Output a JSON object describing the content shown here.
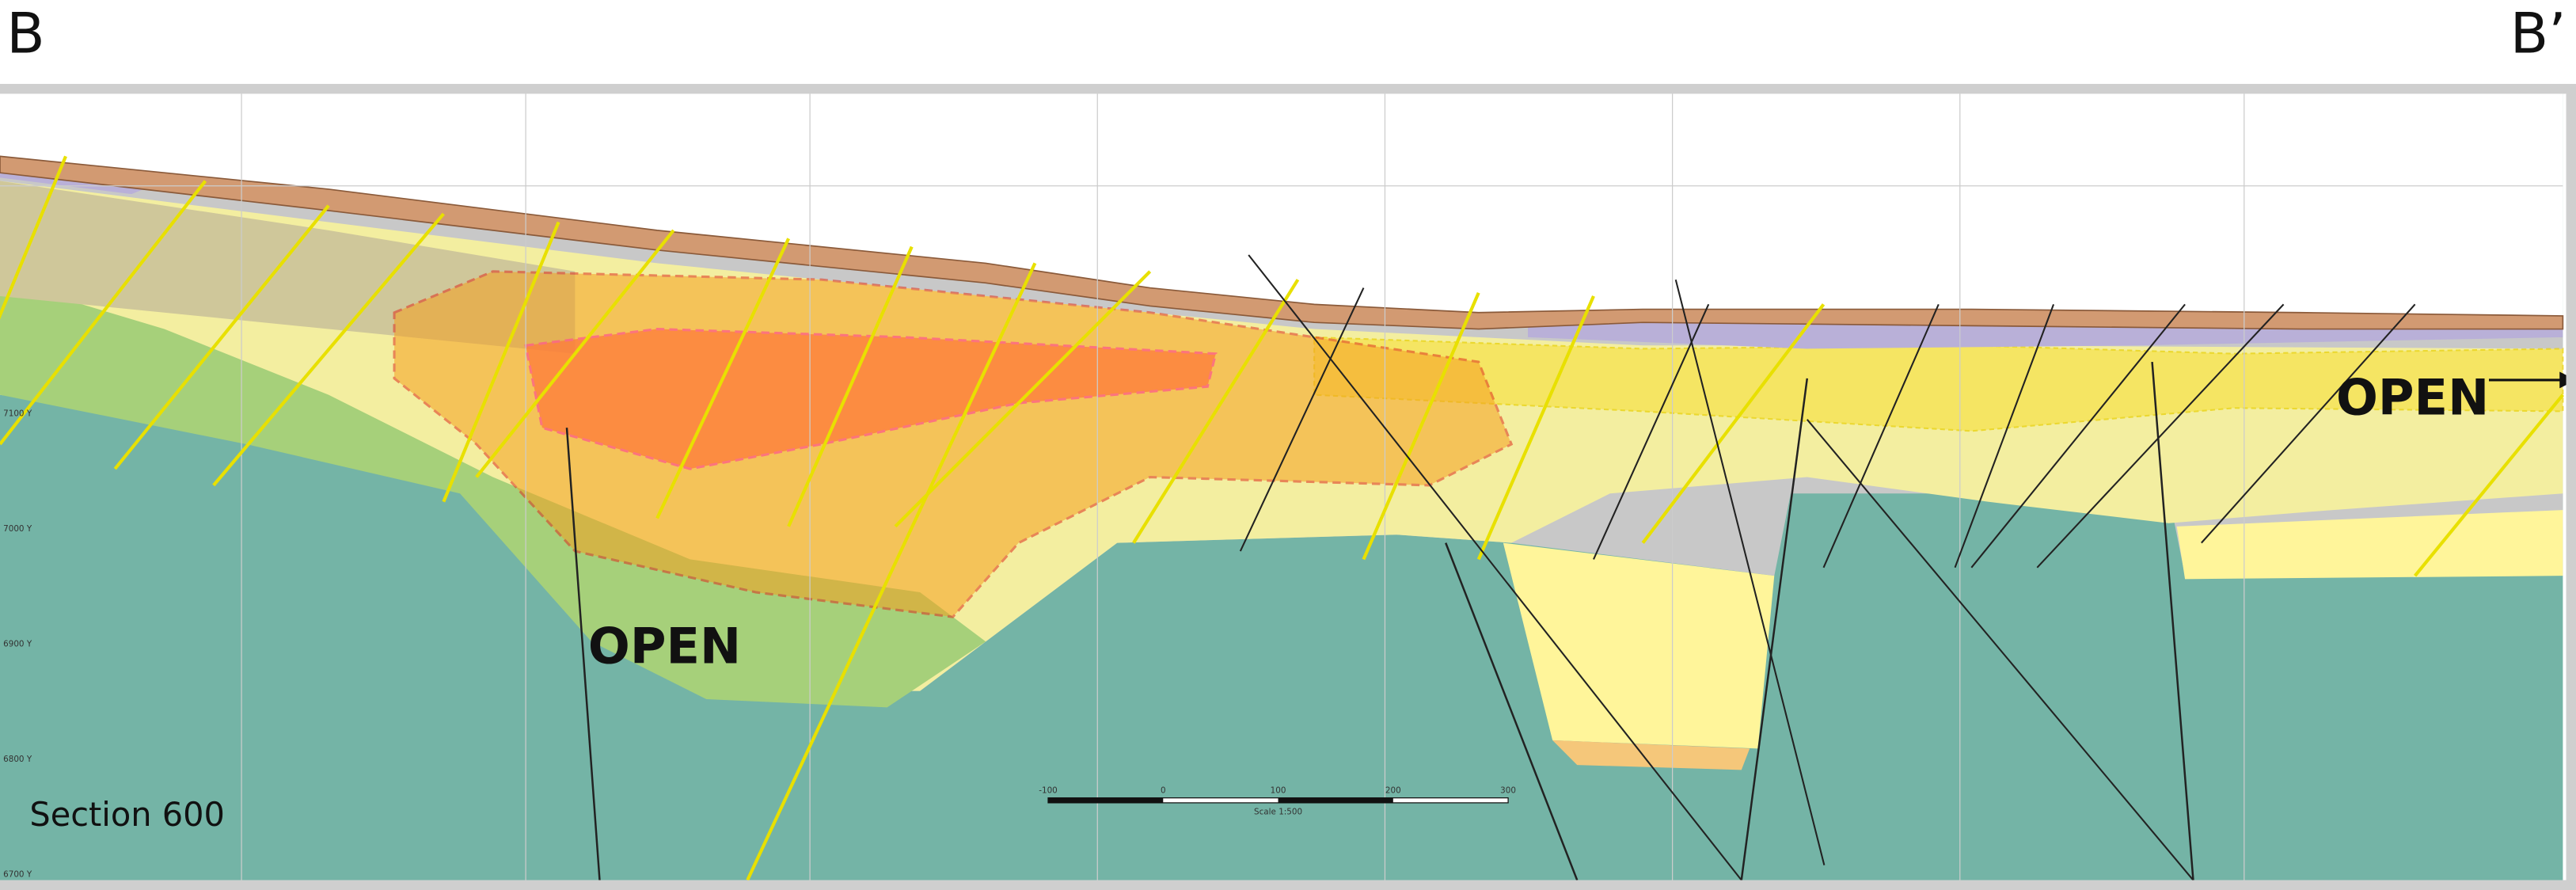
{
  "section_labels": {
    "left": "B",
    "right": "B’"
  },
  "annotations": [
    "OPEN",
    "OPEN"
  ],
  "section_name": "Section 600",
  "y_grid_labels": [
    "7100 Y",
    "7000 Y",
    "6900 Y",
    "6800 Y",
    "6700 Y"
  ],
  "scale_bar": {
    "ticks": [
      "-100",
      "0",
      "100",
      "200",
      "300"
    ],
    "caption": "Scale 1:500"
  }
}
